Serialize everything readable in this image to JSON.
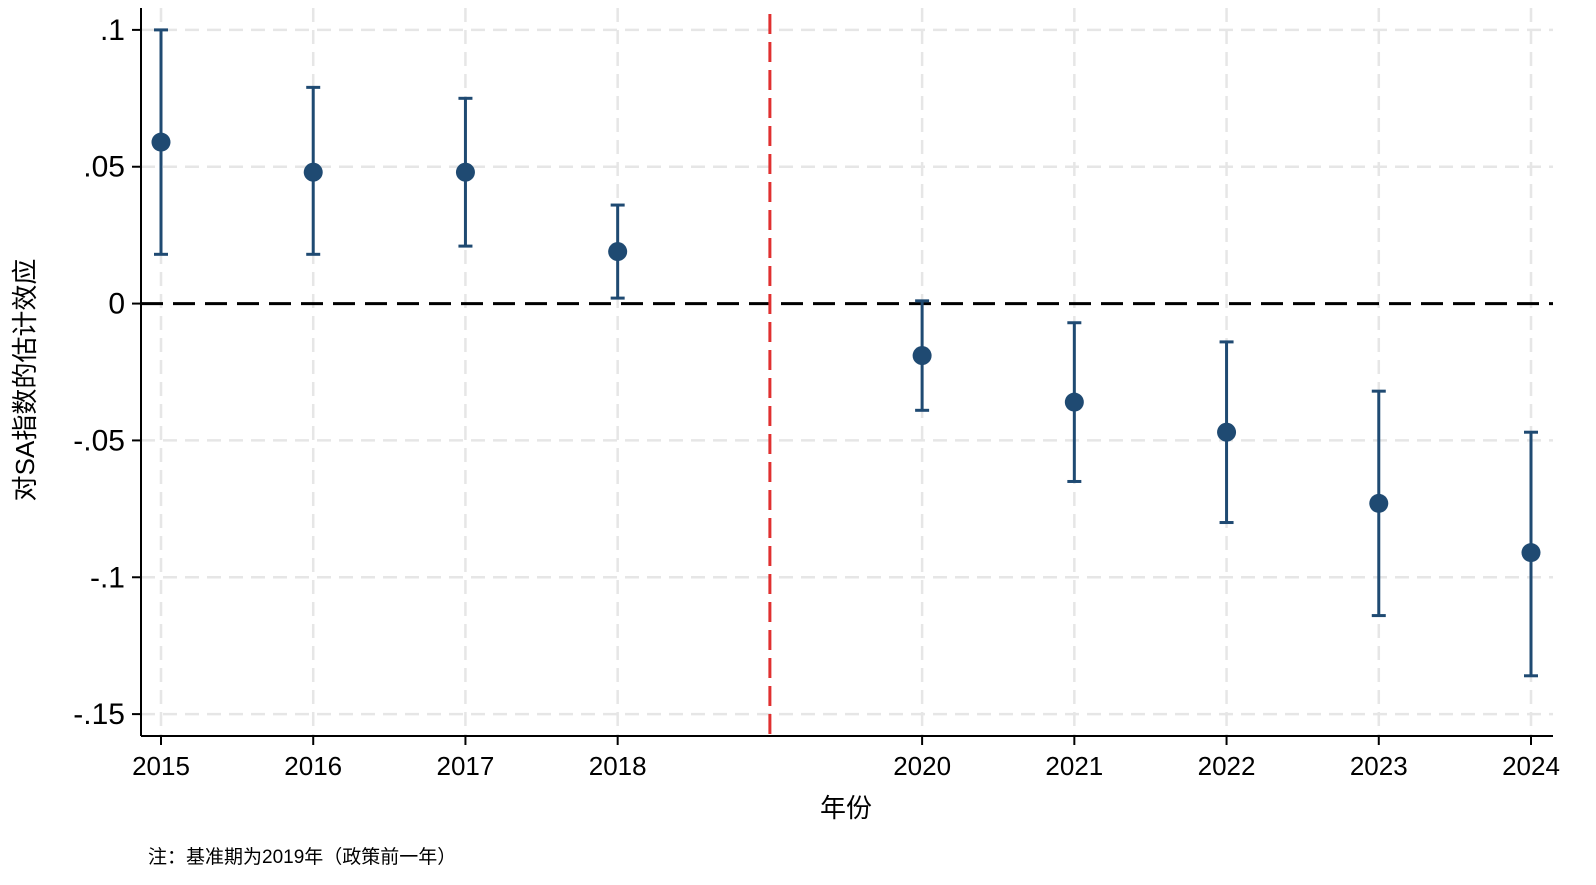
{
  "chart_data": {
    "type": "scatter",
    "subtype": "coefficient-plot-with-confidence-intervals",
    "title": "",
    "xlabel": "年份",
    "ylabel": "对SA指数的估计效应",
    "note": "注：基准期为2019年（政策前一年）",
    "x_ticks": [
      2015,
      2016,
      2017,
      2018,
      2020,
      2021,
      2022,
      2023,
      2024
    ],
    "x_tick_labels": [
      "2015",
      "2016",
      "2017",
      "2018",
      "2020",
      "2021",
      "2022",
      "2023",
      "2024"
    ],
    "xlim": [
      2015,
      2024
    ],
    "y_ticks": [
      0.1,
      0.05,
      0,
      -0.05,
      -0.1,
      -0.15
    ],
    "y_tick_labels": [
      ".1",
      ".05",
      "0",
      "-.05",
      "-.1",
      "-.15"
    ],
    "ylim": [
      -0.158,
      0.108
    ],
    "grid": true,
    "reference_lines": {
      "horizontal_zero": {
        "y": 0,
        "style": "dashed",
        "color": "#000000"
      },
      "vertical_base_period": {
        "x": 2019,
        "style": "dashed",
        "color": "#e03030"
      }
    },
    "series": [
      {
        "color": "#1f4a72",
        "points": [
          {
            "x": 2015,
            "y": 0.059,
            "ci_low": 0.018,
            "ci_high": 0.1
          },
          {
            "x": 2016,
            "y": 0.048,
            "ci_low": 0.018,
            "ci_high": 0.079
          },
          {
            "x": 2017,
            "y": 0.048,
            "ci_low": 0.021,
            "ci_high": 0.075
          },
          {
            "x": 2018,
            "y": 0.019,
            "ci_low": 0.002,
            "ci_high": 0.036
          },
          {
            "x": 2020,
            "y": -0.019,
            "ci_low": -0.039,
            "ci_high": 0.001
          },
          {
            "x": 2021,
            "y": -0.036,
            "ci_low": -0.065,
            "ci_high": -0.007
          },
          {
            "x": 2022,
            "y": -0.047,
            "ci_low": -0.08,
            "ci_high": -0.014
          },
          {
            "x": 2023,
            "y": -0.073,
            "ci_low": -0.114,
            "ci_high": -0.032
          },
          {
            "x": 2024,
            "y": -0.091,
            "ci_low": -0.136,
            "ci_high": -0.047
          }
        ]
      }
    ]
  }
}
